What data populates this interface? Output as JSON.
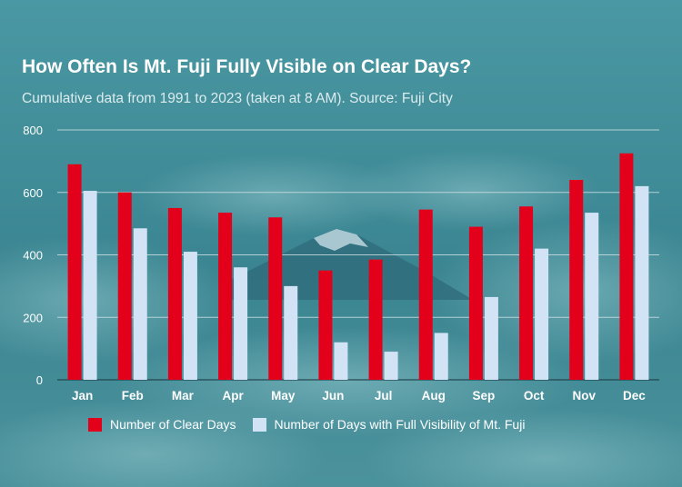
{
  "header": {
    "title": "How Often Is Mt. Fuji Fully Visible on Clear Days?",
    "subtitle": "Cumulative data from 1991 to 2023 (taken at 8 AM). Source: Fuji City"
  },
  "colors": {
    "clear_days": "#e3001b",
    "full_visibility": "#d3e3f6",
    "text": "#ffffff",
    "grid": "#cfe2e6"
  },
  "chart_data": {
    "type": "bar",
    "categories": [
      "Jan",
      "Feb",
      "Mar",
      "Apr",
      "May",
      "Jun",
      "Jul",
      "Aug",
      "Sep",
      "Oct",
      "Nov",
      "Dec"
    ],
    "series": [
      {
        "name": "Number of Clear Days",
        "values": [
          690,
          600,
          550,
          535,
          520,
          350,
          385,
          545,
          490,
          555,
          640,
          725
        ]
      },
      {
        "name": "Number of Days with Full Visibility of Mt. Fuji",
        "values": [
          605,
          485,
          410,
          360,
          300,
          120,
          90,
          150,
          265,
          420,
          535,
          620
        ]
      }
    ],
    "yticks": [
      0,
      200,
      400,
      600,
      800
    ],
    "ylim": [
      0,
      800
    ],
    "grid": true,
    "legend_position": "bottom"
  }
}
